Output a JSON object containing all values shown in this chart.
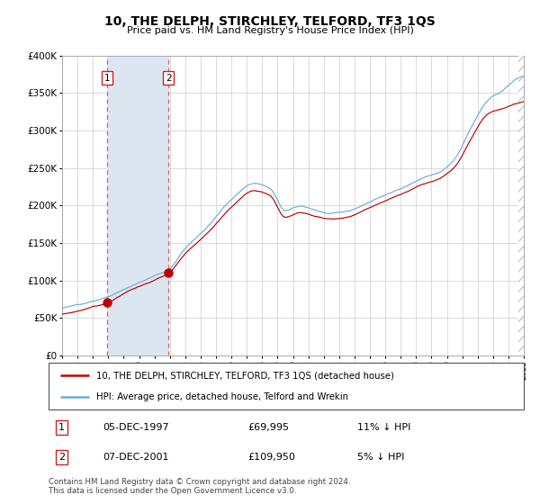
{
  "title": "10, THE DELPH, STIRCHLEY, TELFORD, TF3 1QS",
  "subtitle": "Price paid vs. HM Land Registry's House Price Index (HPI)",
  "legend_line1": "10, THE DELPH, STIRCHLEY, TELFORD, TF3 1QS (detached house)",
  "legend_line2": "HPI: Average price, detached house, Telford and Wrekin",
  "table_row1": [
    "1",
    "05-DEC-1997",
    "£69,995",
    "11% ↓ HPI"
  ],
  "table_row2": [
    "2",
    "07-DEC-2001",
    "£109,950",
    "5% ↓ HPI"
  ],
  "footer": "Contains HM Land Registry data © Crown copyright and database right 2024.\nThis data is licensed under the Open Government Licence v3.0.",
  "sale1_date": 1997.92,
  "sale1_price": 69995,
  "sale2_date": 2001.92,
  "sale2_price": 109950,
  "year_start": 1995,
  "year_end": 2025,
  "ymax": 400000,
  "hpi_color": "#6baed6",
  "price_color": "#c00000",
  "sale_marker_color": "#c00000",
  "shaded_region_color": "#dce6f1",
  "dashed_line_color": "#e06060",
  "grid_color": "#cccccc",
  "hatch_color": "#bbbbbb",
  "bg_color": "#ffffff"
}
